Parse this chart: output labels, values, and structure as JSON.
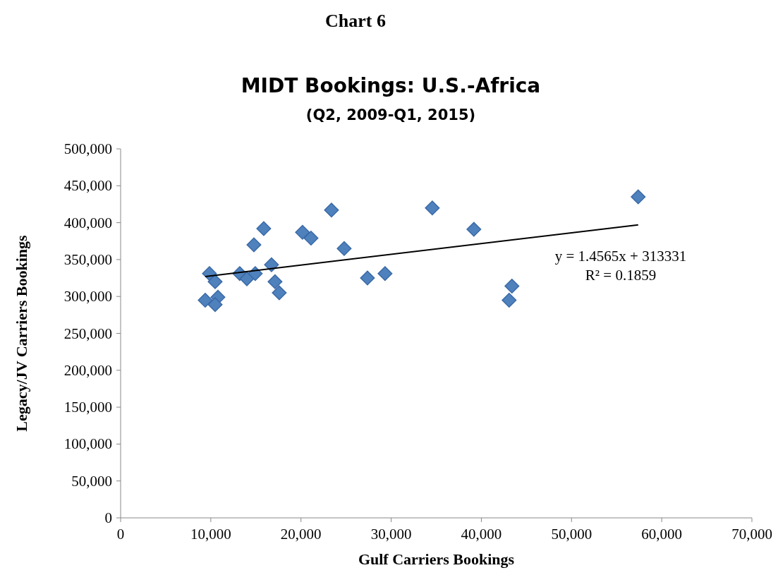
{
  "chart_data": {
    "type": "scatter",
    "title": "MIDT Bookings: U.S.-Africa",
    "subtitle": "(Q2, 2009-Q1, 2015)",
    "xlabel": "Gulf Carriers Bookings",
    "ylabel": "Legacy/JV Carriers Bookings",
    "annotations": [
      "Chart 6",
      "y = 1.4565x + 313331",
      "R² = 0.1859"
    ],
    "grid": false,
    "xlim": [
      0,
      70000
    ],
    "xticks": [
      {
        "value": 0,
        "label": "0"
      },
      {
        "value": 10000,
        "label": "10,000"
      },
      {
        "value": 20000,
        "label": "20,000"
      },
      {
        "value": 30000,
        "label": "30,000"
      },
      {
        "value": 40000,
        "label": "40,000"
      },
      {
        "value": 50000,
        "label": "50,000"
      },
      {
        "value": 60000,
        "label": "60,000"
      },
      {
        "value": 70000,
        "label": "70,000"
      }
    ],
    "ylim": [
      0,
      500000
    ],
    "yticks": [
      {
        "value": 0,
        "label": "0"
      },
      {
        "value": 50000,
        "label": "50,000"
      },
      {
        "value": 100000,
        "label": "100,000"
      },
      {
        "value": 150000,
        "label": "150,000"
      },
      {
        "value": 200000,
        "label": "200,000"
      },
      {
        "value": 250000,
        "label": "250,000"
      },
      {
        "value": 300000,
        "label": "300,000"
      },
      {
        "value": 350000,
        "label": "350,000"
      },
      {
        "value": 400000,
        "label": "400,000"
      },
      {
        "value": 450000,
        "label": "450,000"
      },
      {
        "value": 500000,
        "label": "500,000"
      }
    ],
    "series": [
      {
        "color": "#4f81bd",
        "marker": "diamond",
        "x": [
          9380,
          9850,
          10480,
          10790,
          10480,
          13210,
          14000,
          14930,
          14780,
          15870,
          16730,
          17120,
          17590,
          20170,
          21110,
          23380,
          24790,
          27370,
          29320,
          34560,
          39170,
          43080,
          43390,
          57390
        ],
        "values": [
          295000,
          331000,
          320000,
          299000,
          289000,
          331000,
          324000,
          331000,
          370000,
          392000,
          343000,
          320000,
          305000,
          387000,
          379000,
          417000,
          365000,
          325000,
          331000,
          420000,
          391000,
          295000,
          314000,
          435000
        ]
      },
      {
        "type": "line",
        "color": "#000000",
        "marker": "none",
        "x": [
          9380,
          57390
        ],
        "values": [
          327000,
          397000
        ]
      }
    ]
  }
}
